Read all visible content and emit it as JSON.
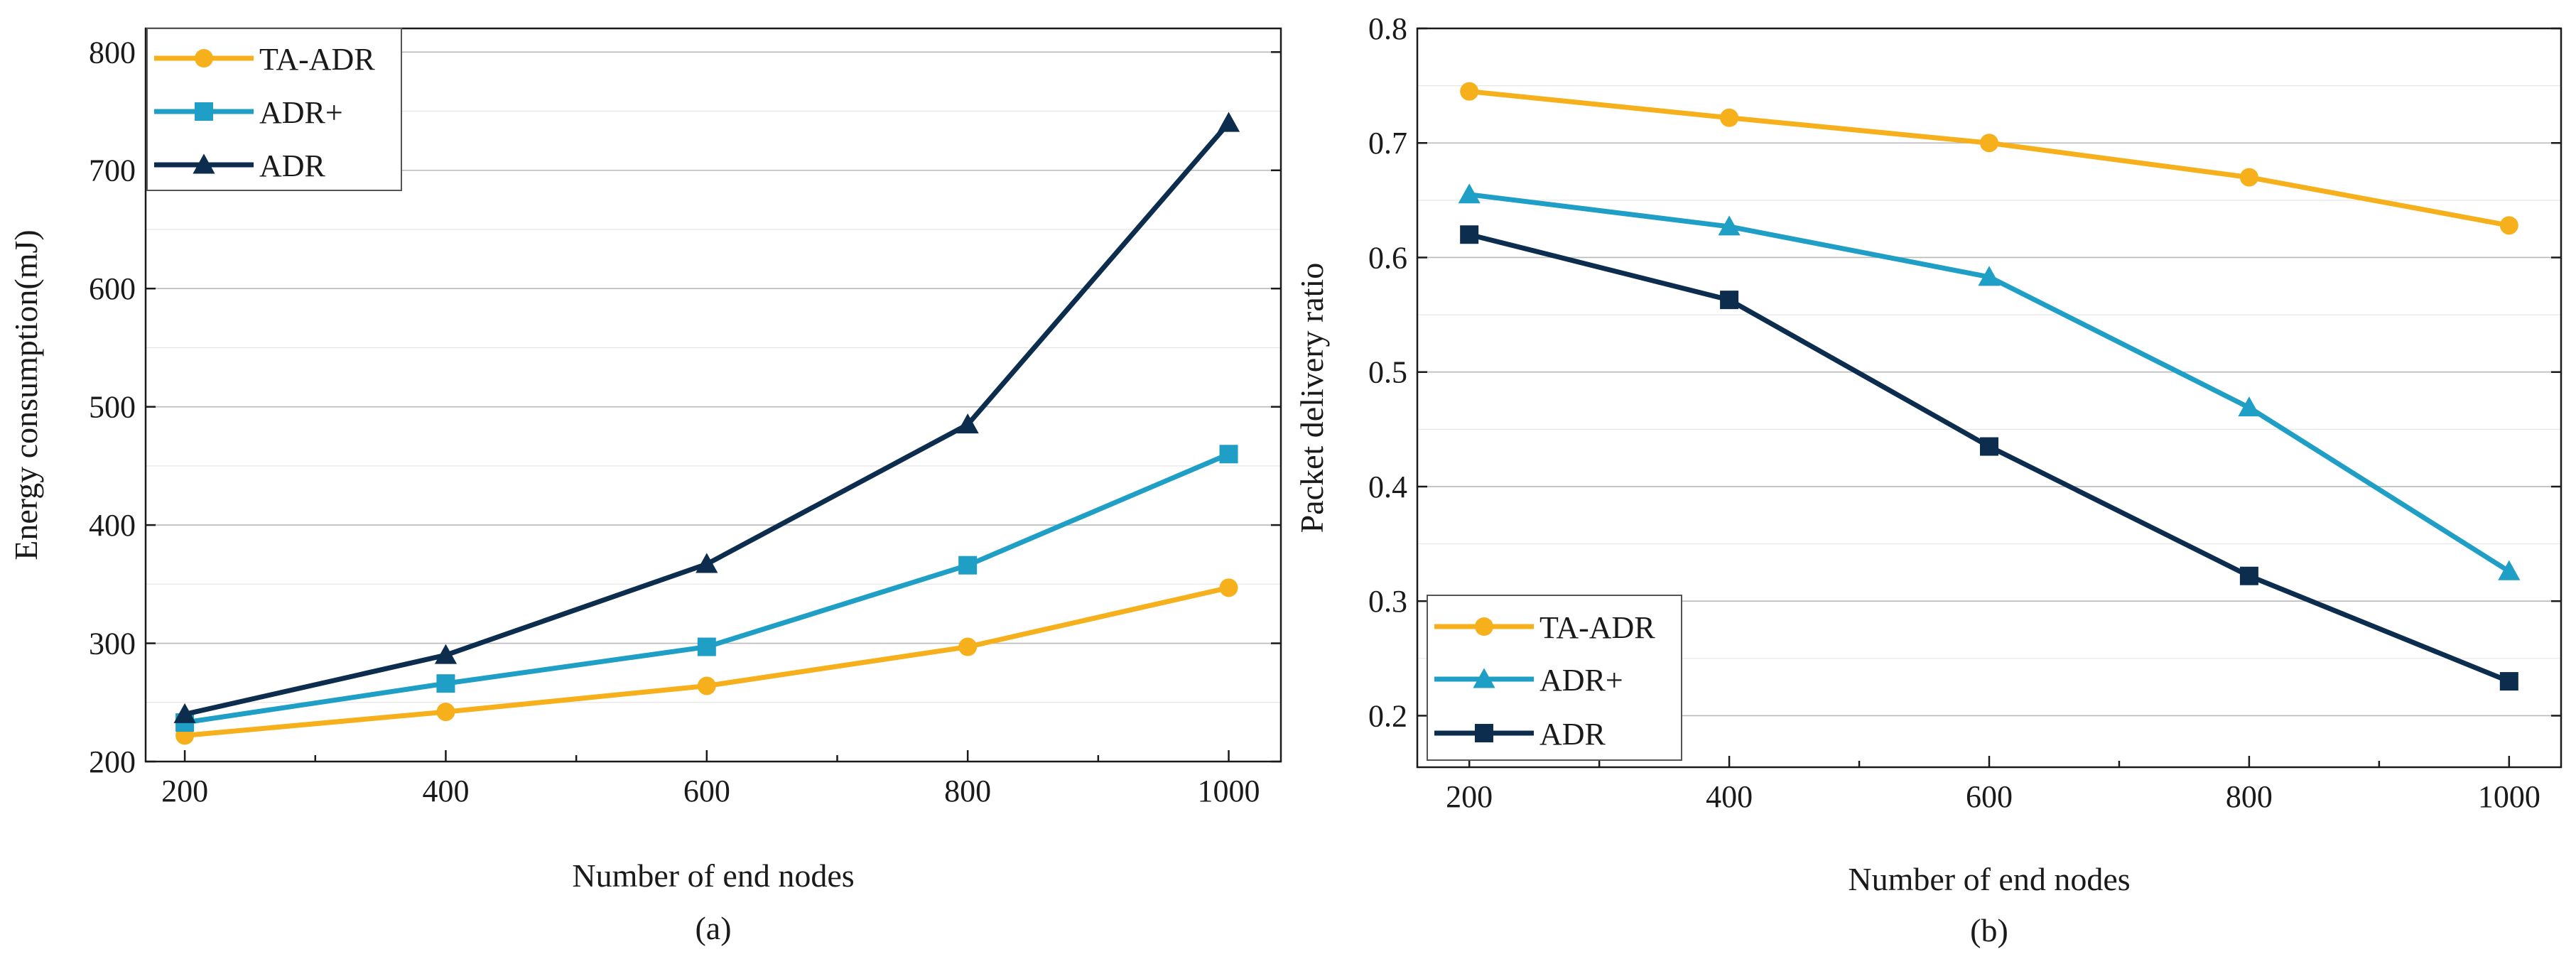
{
  "chart_data": [
    {
      "type": "line",
      "caption": "(a)",
      "xlabel": "Number of end nodes",
      "ylabel": "Energy consumption(mJ)",
      "x": [
        200,
        400,
        600,
        800,
        1000
      ],
      "xlim": [
        170,
        1040
      ],
      "ylim": [
        200,
        820
      ],
      "xticks": [
        200,
        400,
        600,
        800,
        1000
      ],
      "yticks": [
        200,
        300,
        400,
        500,
        600,
        700,
        800
      ],
      "legend_position": "top-left",
      "series": [
        {
          "name": "TA-ADR",
          "color": "#f5b01c",
          "marker": "circle",
          "values": [
            222,
            242,
            264,
            297,
            347
          ]
        },
        {
          "name": "ADR+",
          "color": "#1f9fc5",
          "marker": "square",
          "values": [
            233,
            266,
            297,
            366,
            460
          ]
        },
        {
          "name": "ADR",
          "color": "#0c2d4e",
          "marker": "triangle",
          "values": [
            240,
            290,
            367,
            485,
            740
          ]
        }
      ]
    },
    {
      "type": "line",
      "caption": "(b)",
      "xlabel": "Number of end nodes",
      "ylabel": "Packet delivery ratio",
      "x": [
        200,
        400,
        600,
        800,
        1000
      ],
      "xlim": [
        160,
        1040
      ],
      "ylim": [
        0.155,
        0.8
      ],
      "xticks": [
        200,
        400,
        600,
        800,
        1000
      ],
      "yticks": [
        0.2,
        0.3,
        0.4,
        0.5,
        0.6,
        0.7,
        0.8
      ],
      "legend_position": "bottom-left",
      "series": [
        {
          "name": "TA-ADR",
          "color": "#f5b01c",
          "marker": "circle",
          "values": [
            0.745,
            0.722,
            0.7,
            0.67,
            0.628
          ]
        },
        {
          "name": "ADR+",
          "color": "#1f9fc5",
          "marker": "triangle",
          "values": [
            0.655,
            0.627,
            0.583,
            0.469,
            0.326
          ]
        },
        {
          "name": "ADR",
          "color": "#0c2d4e",
          "marker": "square",
          "values": [
            0.62,
            0.563,
            0.435,
            0.322,
            0.23
          ]
        }
      ]
    }
  ]
}
